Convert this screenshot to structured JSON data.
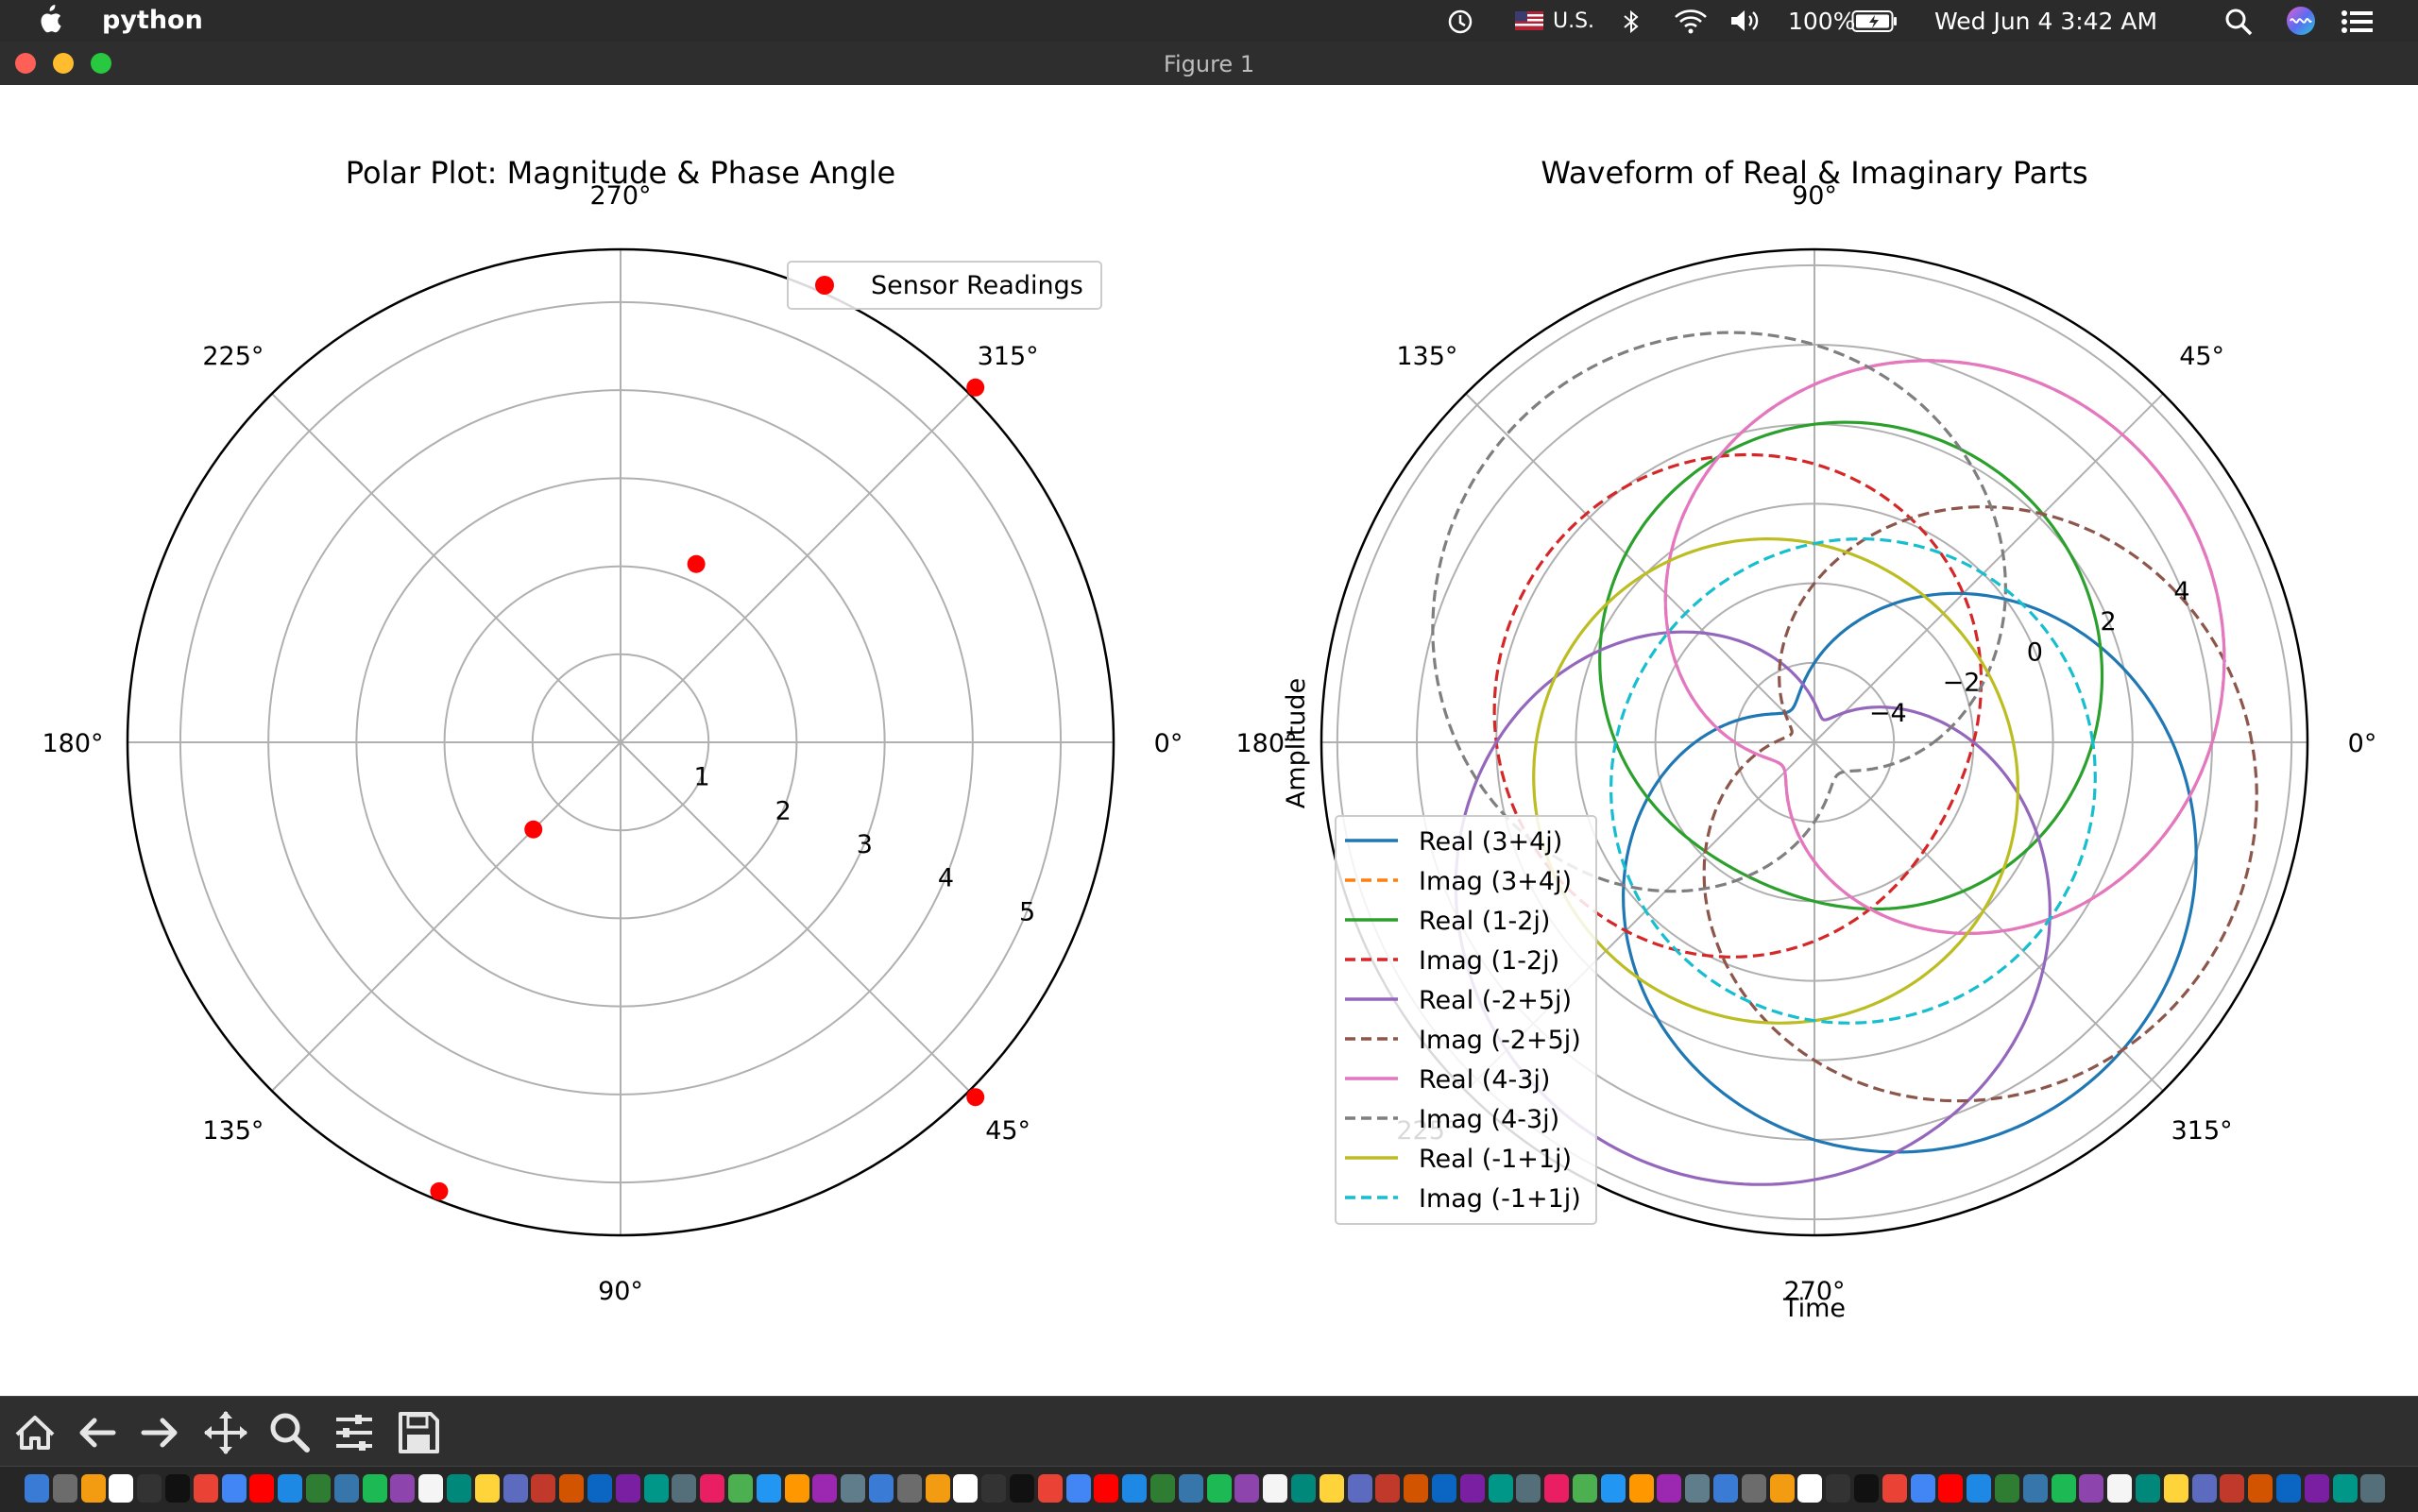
{
  "menubar": {
    "app_name": "python",
    "input_source": "U.S.",
    "battery": "100%",
    "datetime": "Wed Jun 4  3:42 AM",
    "icons": [
      "apple-icon",
      "time-machine-icon",
      "flag-us-icon",
      "bluetooth-icon",
      "wifi-icon",
      "volume-icon",
      "battery-icon",
      "search-icon",
      "siri-icon",
      "control-center-icon"
    ]
  },
  "window": {
    "title": "Figure 1",
    "controls": {
      "close": "#fe5f57",
      "minimize": "#febc2e",
      "zoom": "#28c840"
    }
  },
  "toolbar": {
    "buttons": [
      "home-icon",
      "back-arrow-icon",
      "forward-arrow-icon",
      "pan-icon",
      "zoom-icon",
      "configure-subplots-icon",
      "save-icon"
    ]
  },
  "dock": {
    "icon_count": 84
  },
  "chart_data": [
    {
      "type": "scatter",
      "projection": "polar",
      "title": "Polar Plot: Magnitude & Phase Angle",
      "theta_direction": "clockwise",
      "theta_zero": "east",
      "angle_labels": [
        "0°",
        "45°",
        "90°",
        "135°",
        "180°",
        "225°",
        "270°",
        "315°"
      ],
      "radial_ticks": [
        "1",
        "2",
        "3",
        "4",
        "5"
      ],
      "rlim": [
        0,
        5.6
      ],
      "grid": true,
      "legend": {
        "placement": "top-right",
        "entries": [
          "Sensor Readings"
        ]
      },
      "series": [
        {
          "name": "Sensor Readings",
          "color": "#ff0000",
          "points": [
            {
              "theta_deg": 293,
              "r": 2.2
            },
            {
              "theta_deg": 315,
              "r": 5.7
            },
            {
              "theta_deg": 135,
              "r": 1.4
            },
            {
              "theta_deg": 45,
              "r": 5.7
            },
            {
              "theta_deg": 112,
              "r": 5.5
            }
          ]
        }
      ]
    },
    {
      "type": "line",
      "projection": "polar",
      "title": "Waveform of Real & Imaginary Parts",
      "xlabel": "Time",
      "ylabel": "Amplitude",
      "theta_direction": "counterclockwise",
      "angle_labels": [
        "0°",
        "45°",
        "90°",
        "135°",
        "180°",
        "225°",
        "270°",
        "315°"
      ],
      "radial_ticks": [
        "−4",
        "−2",
        "0",
        "2",
        "4"
      ],
      "rlim": [
        -6,
        6.4
      ],
      "grid": true,
      "legend": {
        "placement": "lower-left",
        "entries": [
          "Real (3+4j)",
          "Imag (3+4j)",
          "Real (1-2j)",
          "Imag (1-2j)",
          "Real (-2+5j)",
          "Imag (-2+5j)",
          "Real (4-3j)",
          "Imag (4-3j)",
          "Real (-1+1j)",
          "Imag (-1+1j)"
        ]
      },
      "series": [
        {
          "name": "Real (3+4j)",
          "color": "#1f77b4",
          "dash": "solid",
          "a": 3,
          "b": -4
        },
        {
          "name": "Imag (3+4j)",
          "color": "#ff7f0e",
          "dash": "dashed",
          "a": 4,
          "b": 3
        },
        {
          "name": "Real (1-2j)",
          "color": "#2ca02c",
          "dash": "solid",
          "a": 1,
          "b": 2
        },
        {
          "name": "Imag (1-2j)",
          "color": "#d62728",
          "dash": "dashed",
          "a": -2,
          "b": 1
        },
        {
          "name": "Real (-2+5j)",
          "color": "#9467bd",
          "dash": "solid",
          "a": -2,
          "b": -5
        },
        {
          "name": "Imag (-2+5j)",
          "color": "#8c564b",
          "dash": "dashed",
          "a": 5,
          "b": -2
        },
        {
          "name": "Real (4-3j)",
          "color": "#e377c2",
          "dash": "solid",
          "a": 4,
          "b": 3
        },
        {
          "name": "Imag (4-3j)",
          "color": "#7f7f7f",
          "dash": "dashed",
          "a": -3,
          "b": 4
        },
        {
          "name": "Real (-1+1j)",
          "color": "#bcbd22",
          "dash": "solid",
          "a": -1,
          "b": -1
        },
        {
          "name": "Imag (-1+1j)",
          "color": "#17becf",
          "dash": "dashed",
          "a": 1,
          "b": -1
        }
      ],
      "waveform": "y(t) = a·cos(t) + b·sin(t), t in [0, 2π]"
    }
  ]
}
